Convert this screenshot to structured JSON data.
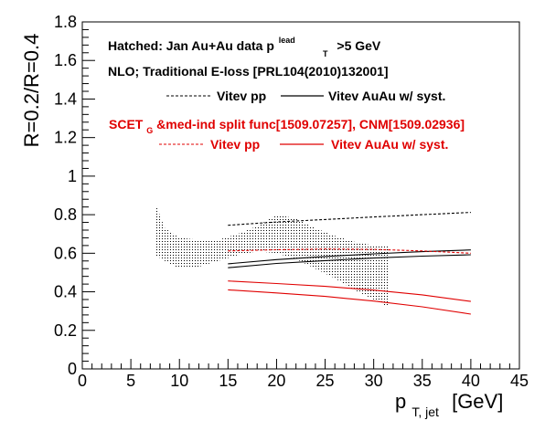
{
  "chart_data": {
    "type": "line",
    "xlabel_main": "p",
    "xlabel_sub": "T, jet",
    "xlabel_unit": "[GeV]",
    "ylabel": "R=0.2/R=0.4",
    "xlim": [
      0,
      45
    ],
    "ylim": [
      0,
      1.8
    ],
    "x_ticks": [
      "0",
      "5",
      "10",
      "15",
      "20",
      "25",
      "30",
      "35",
      "40",
      "45"
    ],
    "y_ticks": [
      "0",
      "0.2",
      "0.4",
      "0.6",
      "0.8",
      "1",
      "1.2",
      "1.4",
      "1.6",
      "1.8"
    ],
    "annotations": {
      "line1_pre": "Hatched: Jan Au+Au data p",
      "line1_sup": "lead",
      "line1_sub": "T",
      "line1_post": ">5 GeV",
      "line2": "NLO; Traditional E-loss [PRL104(2010)132001]",
      "line3_pre": "SCET",
      "line3_sub": "G",
      "line3_post": "&med-ind split func[1509.07257], CNM[1509.02936]"
    },
    "legend": [
      {
        "label": "Vitev pp",
        "color": "#000000",
        "style": "dashed"
      },
      {
        "label": "Vitev AuAu w/ syst.",
        "color": "#000000",
        "style": "solid"
      },
      {
        "label": "Vitev pp",
        "color": "#e00000",
        "style": "dashed"
      },
      {
        "label": "Vitev AuAu w/ syst.",
        "color": "#e00000",
        "style": "solid"
      }
    ],
    "data_band": {
      "x": [
        7.5,
        8.5,
        10,
        12,
        14,
        16,
        18,
        20,
        22,
        24,
        26,
        28,
        30,
        31.5
      ],
      "upper": [
        0.86,
        0.73,
        0.68,
        0.67,
        0.67,
        0.7,
        0.74,
        0.8,
        0.78,
        0.73,
        0.69,
        0.66,
        0.64,
        0.64
      ],
      "lower": [
        0.59,
        0.56,
        0.52,
        0.53,
        0.56,
        0.59,
        0.61,
        0.6,
        0.57,
        0.52,
        0.47,
        0.41,
        0.36,
        0.32
      ]
    },
    "series": [
      {
        "name": "Vitev pp",
        "color": "#000000",
        "style": "dashed",
        "x": [
          15,
          20,
          25,
          30,
          35,
          40
        ],
        "y": [
          0.745,
          0.762,
          0.775,
          0.788,
          0.8,
          0.812
        ]
      },
      {
        "name": "Vitev AuAu w/ syst.",
        "color": "#000000",
        "style": "solid",
        "x": [
          15,
          20,
          25,
          30,
          35,
          40
        ],
        "y": [
          0.545,
          0.567,
          0.583,
          0.597,
          0.608,
          0.617
        ]
      },
      {
        "color": "#000000",
        "style": "solid",
        "x": [
          15,
          20,
          25,
          30,
          35,
          40
        ],
        "y": [
          0.525,
          0.547,
          0.562,
          0.575,
          0.585,
          0.592
        ]
      },
      {
        "name": "Vitev pp",
        "color": "#e00000",
        "style": "dashed",
        "x": [
          15,
          20,
          25,
          30,
          35,
          40
        ],
        "y": [
          0.612,
          0.618,
          0.622,
          0.62,
          0.612,
          0.6
        ]
      },
      {
        "name": "Vitev AuAu w/ syst.",
        "color": "#e00000",
        "style": "solid",
        "x": [
          15,
          20,
          25,
          30,
          35,
          40
        ],
        "y": [
          0.456,
          0.443,
          0.428,
          0.409,
          0.384,
          0.35
        ]
      },
      {
        "color": "#e00000",
        "style": "solid",
        "x": [
          15,
          20,
          25,
          30,
          35,
          40
        ],
        "y": [
          0.41,
          0.394,
          0.376,
          0.352,
          0.322,
          0.284
        ]
      }
    ]
  }
}
